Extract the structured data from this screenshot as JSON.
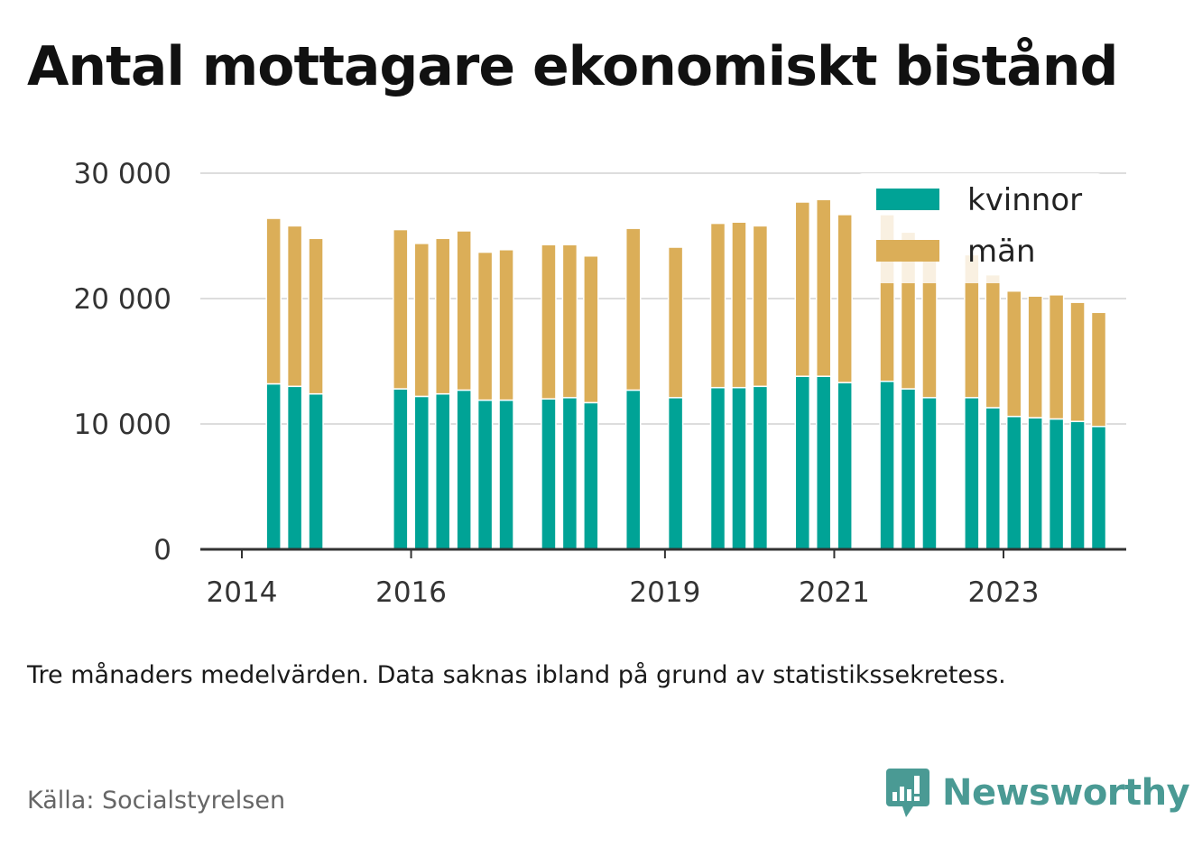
{
  "title": "Antal mottagare ekonomiskt bistånd",
  "note": "Tre månaders medelvärden. Data saknas ibland på grund av statistikssekretess.",
  "source": "Källa: Socialstyrelsen",
  "brand": {
    "name": "Newsworthy",
    "icon": "newsworthy-logo-icon",
    "color": "#4a9a94"
  },
  "chart_data": {
    "type": "bar",
    "stacked": true,
    "x_unit": "year (quarter midpoints)",
    "x": [
      2014.375,
      2014.625,
      2014.875,
      2015.875,
      2016.125,
      2016.375,
      2016.625,
      2016.875,
      2017.125,
      2017.625,
      2017.875,
      2018.125,
      2018.625,
      2019.125,
      2019.625,
      2019.875,
      2020.125,
      2020.625,
      2020.875,
      2021.125,
      2021.625,
      2021.875,
      2022.125,
      2022.625,
      2022.875,
      2023.125,
      2023.375,
      2023.625,
      2023.875,
      2024.125
    ],
    "series": [
      {
        "name": "kvinnor",
        "color": "#00a396",
        "values": [
          13200,
          13000,
          12400,
          12800,
          12200,
          12400,
          12700,
          11900,
          11900,
          12000,
          12100,
          11700,
          12700,
          12100,
          12900,
          12900,
          13000,
          13800,
          13800,
          13300,
          13400,
          12800,
          12100,
          12100,
          11300,
          10600,
          10500,
          10400,
          10200,
          9800
        ]
      },
      {
        "name": "män",
        "color": "#dbae58",
        "values": [
          13200,
          12800,
          12400,
          12700,
          12200,
          12400,
          12700,
          11800,
          12000,
          12300,
          12200,
          11700,
          12900,
          12000,
          13100,
          13200,
          12800,
          13900,
          14100,
          13400,
          13300,
          12500,
          11300,
          11400,
          10600,
          10000,
          9700,
          9900,
          9500,
          9100
        ]
      }
    ],
    "x_ticks": [
      2014,
      2016,
      2019,
      2021,
      2023
    ],
    "y_ticks": [
      0,
      10000,
      20000,
      30000
    ],
    "y_tick_labels": [
      "0",
      "10 000",
      "20 000",
      "30 000"
    ],
    "xlim": [
      2014,
      2024.5
    ],
    "ylim": [
      0,
      30000
    ],
    "grid": "horizontal",
    "legend": "top-right"
  }
}
